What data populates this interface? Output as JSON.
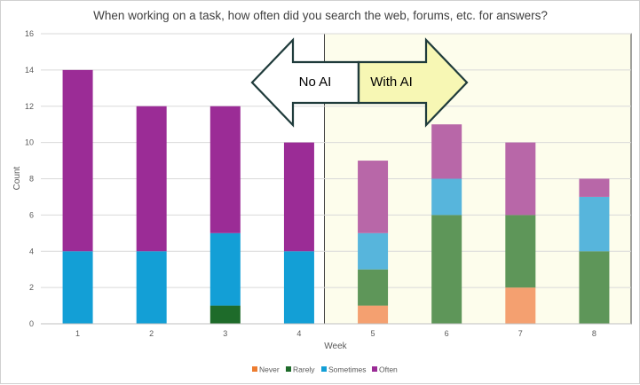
{
  "chart_data": {
    "type": "bar",
    "stacked": true,
    "title": "When working on a task, how often did you search the web, forums, etc. for answers?",
    "xlabel": "Week",
    "ylabel": "Count",
    "ylim": [
      0,
      16
    ],
    "yticks": [
      0,
      2,
      4,
      6,
      8,
      10,
      12,
      14,
      16
    ],
    "categories": [
      "1",
      "2",
      "3",
      "4",
      "5",
      "6",
      "7",
      "8"
    ],
    "series": [
      {
        "name": "Never",
        "values": [
          0,
          0,
          0,
          0,
          1,
          0,
          2,
          0
        ],
        "color": "#ed7d31",
        "color_with_ai": "#f4a070"
      },
      {
        "name": "Rarely",
        "values": [
          0,
          0,
          1,
          0,
          2,
          6,
          4,
          4
        ],
        "color": "#1e6b2a",
        "color_with_ai": "#5e9659"
      },
      {
        "name": "Sometimes",
        "values": [
          4,
          4,
          4,
          4,
          2,
          2,
          0,
          3
        ],
        "color": "#139fd6",
        "color_with_ai": "#57b5dc"
      },
      {
        "name": "Often",
        "values": [
          10,
          8,
          7,
          6,
          4,
          3,
          4,
          1
        ],
        "color": "#9b2c96",
        "color_with_ai": "#b867a8"
      }
    ],
    "grid": true,
    "legend_position": "bottom",
    "annotations": {
      "no_ai_label": "No AI",
      "with_ai_label": "With AI",
      "with_ai_start_week": "5",
      "with_ai_background": "#fdfdec"
    }
  }
}
